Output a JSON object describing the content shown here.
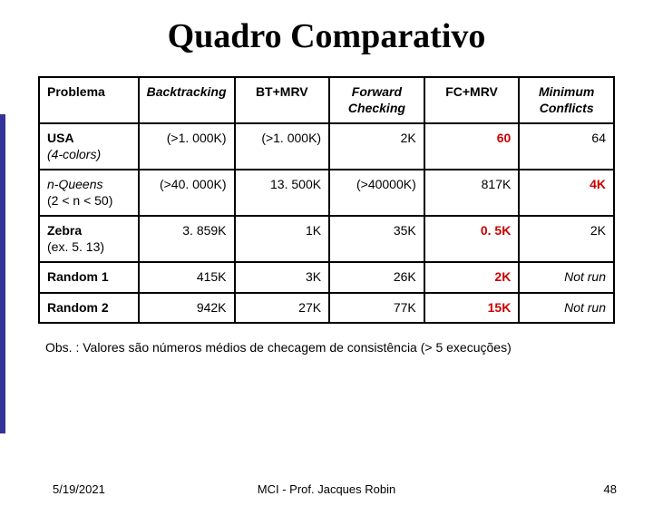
{
  "title": "Quadro Comparativo",
  "table": {
    "columns": [
      {
        "label": "Problema",
        "italic": false,
        "align": "left"
      },
      {
        "label": "Backtracking",
        "italic": true,
        "align": "center"
      },
      {
        "label": "BT+MRV",
        "italic": false,
        "align": "center"
      },
      {
        "label": "Forward Checking",
        "italic": true,
        "align": "center"
      },
      {
        "label": "FC+MRV",
        "italic": false,
        "align": "center"
      },
      {
        "label": "Minimum Conflicts",
        "italic": true,
        "align": "center"
      }
    ],
    "rows": [
      {
        "label": "USA\n(4-colors)",
        "label_italic_part": "(4-colors)",
        "cells": [
          {
            "text": "(>1. 000K)",
            "highlight": false
          },
          {
            "text": "(>1. 000K)",
            "highlight": false
          },
          {
            "text": "2K",
            "highlight": false
          },
          {
            "text": "60",
            "highlight": true
          },
          {
            "text": "64",
            "highlight": false
          }
        ]
      },
      {
        "label": "n-Queens\n(2 < n < 50)",
        "label_style": "italic",
        "cells": [
          {
            "text": "(>40. 000K)",
            "highlight": false
          },
          {
            "text": "13. 500K",
            "highlight": false
          },
          {
            "text": "(>40000K)",
            "highlight": false
          },
          {
            "text": "817K",
            "highlight": false
          },
          {
            "text": "4K",
            "highlight": true
          }
        ]
      },
      {
        "label": "Zebra\n(ex. 5. 13)",
        "cells": [
          {
            "text": "3. 859K",
            "highlight": false
          },
          {
            "text": "1K",
            "highlight": false
          },
          {
            "text": "35K",
            "highlight": false
          },
          {
            "text": "0. 5K",
            "highlight": true
          },
          {
            "text": "2K",
            "highlight": false
          }
        ]
      },
      {
        "label": "Random 1",
        "cells": [
          {
            "text": "415K",
            "highlight": false
          },
          {
            "text": "3K",
            "highlight": false
          },
          {
            "text": "26K",
            "highlight": false
          },
          {
            "text": "2K",
            "highlight": true
          },
          {
            "text": "Not run",
            "highlight": false,
            "italic": true
          }
        ]
      },
      {
        "label": "Random 2",
        "cells": [
          {
            "text": "942K",
            "highlight": false
          },
          {
            "text": "27K",
            "highlight": false
          },
          {
            "text": "77K",
            "highlight": false
          },
          {
            "text": "15K",
            "highlight": true
          },
          {
            "text": "Not run",
            "highlight": false,
            "italic": true
          }
        ]
      }
    ]
  },
  "obs": "Obs. : Valores são números médios de checagem de consistência (> 5 execuções)",
  "footer": {
    "date": "5/19/2021",
    "center": "MCI - Prof. Jacques Robin",
    "pagenum": "48"
  },
  "colors": {
    "highlight": "#cc0000",
    "accent": "#333399",
    "border": "#000000",
    "text": "#000000",
    "background": "#ffffff"
  }
}
